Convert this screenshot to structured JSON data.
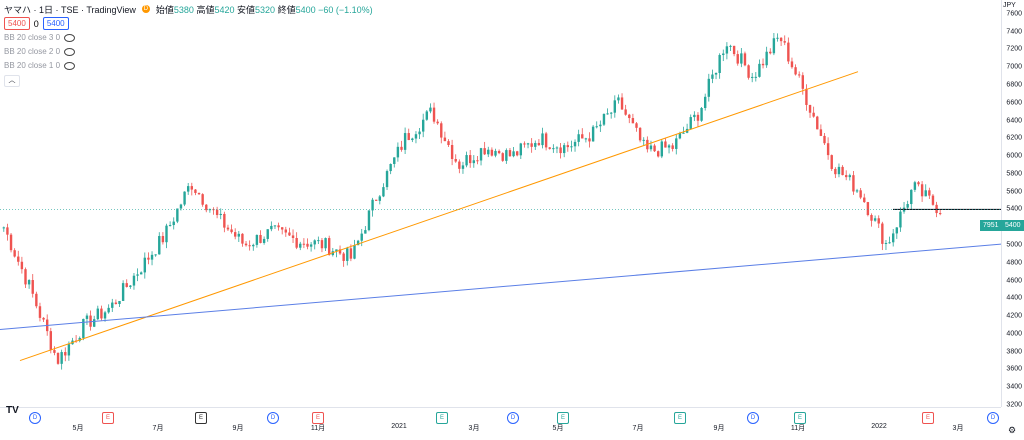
{
  "header": {
    "symbol": "ヤマハ · 1日 · TSE · TradingView",
    "d_badge": "D",
    "ohlc_open_label": "始値",
    "ohlc_open": "5380",
    "ohlc_high_label": "高値",
    "ohlc_high": "5420",
    "ohlc_low_label": "安値",
    "ohlc_low": "5320",
    "ohlc_close_label": "終値",
    "ohlc_close": "5400",
    "ohlc_change": "−60 (−1.10%)"
  },
  "quote": {
    "bid": "5400",
    "spread": "0",
    "ask": "5400"
  },
  "indicators": [
    {
      "label": "BB 20 close 3 0"
    },
    {
      "label": "BB 20 close 2 0"
    },
    {
      "label": "BB 20 close 1 0"
    }
  ],
  "collapse_icon": "chevron-up-icon",
  "currency": "JPY",
  "price_ticks": [
    "7600",
    "7400",
    "7200",
    "7000",
    "6800",
    "6600",
    "6400",
    "6200",
    "6000",
    "5800",
    "5600",
    "5400",
    "5200",
    "5000",
    "4800",
    "4600",
    "4400",
    "4200",
    "4000",
    "3800",
    "3600",
    "3400",
    "3200"
  ],
  "time_ticks": [
    "5月",
    "7月",
    "9月",
    "11月",
    "2021",
    "3月",
    "5月",
    "7月",
    "9月",
    "11月",
    "2022",
    "3月"
  ],
  "last_price_badge": {
    "volume": "7951",
    "price": "5400"
  },
  "events": [
    {
      "type": "D"
    },
    {
      "type": "E"
    },
    {
      "type": "E"
    },
    {
      "type": "D"
    },
    {
      "type": "E"
    },
    {
      "type": "E"
    },
    {
      "type": "D"
    },
    {
      "type": "E"
    },
    {
      "type": "E"
    },
    {
      "type": "D"
    },
    {
      "type": "E"
    },
    {
      "type": "E"
    },
    {
      "type": "D"
    }
  ],
  "colors": {
    "up": "#26a69a",
    "down": "#ef5350",
    "trend_orange": "#ff9800",
    "trend_blue": "#5b7fe6",
    "hline": "#131722"
  },
  "chart_data": {
    "type": "candlestick",
    "title": "",
    "ylim": [
      3200,
      7700
    ],
    "ytick_values": [
      7600,
      7400,
      7200,
      7000,
      6800,
      6600,
      6400,
      6200,
      6000,
      5800,
      5600,
      5400,
      5200,
      5000,
      4800,
      4600,
      4400,
      4200,
      4000,
      3800,
      3600,
      3400,
      3200
    ],
    "x_ticks": [
      "5月",
      "7月",
      "9月",
      "11月",
      "2021",
      "3月",
      "5月",
      "7月",
      "9月",
      "11月",
      "2022",
      "3月"
    ],
    "series_close": [
      [
        "2020-03",
        5200
      ],
      [
        "2020-03",
        4500
      ],
      [
        "2020-03",
        3700
      ],
      [
        "2020-04",
        4100
      ],
      [
        "2020-04",
        4300
      ],
      [
        "2020-05",
        4700
      ],
      [
        "2020-05",
        5100
      ],
      [
        "2020-06",
        5700
      ],
      [
        "2020-06",
        5300
      ],
      [
        "2020-07",
        5000
      ],
      [
        "2020-08",
        5150
      ],
      [
        "2020-09",
        5050
      ],
      [
        "2020-10",
        5000
      ],
      [
        "2020-10",
        4850
      ],
      [
        "2020-11",
        5600
      ],
      [
        "2020-11",
        6200
      ],
      [
        "2020-12",
        6500
      ],
      [
        "2020-12",
        5900
      ],
      [
        "2021-01",
        6100
      ],
      [
        "2021-02",
        6000
      ],
      [
        "2021-03",
        6200
      ],
      [
        "2021-04",
        6100
      ],
      [
        "2021-05",
        6250
      ],
      [
        "2021-06",
        6600
      ],
      [
        "2021-07",
        6050
      ],
      [
        "2021-08",
        6100
      ],
      [
        "2021-09",
        6500
      ],
      [
        "2021-09",
        7300
      ],
      [
        "2021-10",
        6900
      ],
      [
        "2021-10",
        7350
      ],
      [
        "2021-11",
        6650
      ],
      [
        "2021-12",
        5900
      ],
      [
        "2022-01",
        5600
      ],
      [
        "2022-01",
        5000
      ],
      [
        "2022-02",
        5650
      ],
      [
        "2022-02",
        5400
      ]
    ],
    "last_close": 5400,
    "last_volume": 7951
  }
}
